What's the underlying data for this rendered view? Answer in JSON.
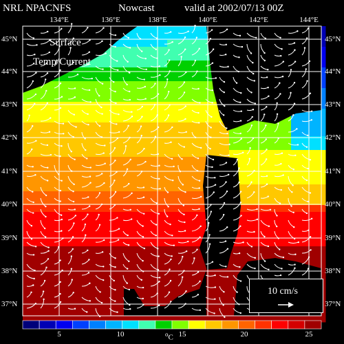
{
  "header": {
    "source": "NRL NPACNFS",
    "product": "Nowcast",
    "valid": "valid at 2002/07/13 00Z"
  },
  "overlay": {
    "line1": "Surface",
    "line2": "Temp/Current"
  },
  "map": {
    "lon_labels": [
      "134°E",
      "136°E",
      "138°E",
      "140°E",
      "142°E",
      "144°E"
    ],
    "lat_labels": [
      "45°N",
      "44°N",
      "43°N",
      "42°N",
      "41°N",
      "40°N",
      "39°N",
      "38°N",
      "37°N"
    ],
    "land_color": "#000000",
    "grid_color": "#ffffff"
  },
  "vector_legend": {
    "label": "10 cm/s"
  },
  "colorbar": {
    "labels": [
      "5",
      "10",
      "15",
      "20",
      "25"
    ],
    "unit": "°C",
    "colors": [
      "#00007a",
      "#0000b4",
      "#0000f0",
      "#0040ff",
      "#0080ff",
      "#00b4ff",
      "#00e0ff",
      "#40ffb0",
      "#00d000",
      "#80ff00",
      "#ffff00",
      "#ffc800",
      "#ff9600",
      "#ff6400",
      "#ff3200",
      "#ff0000",
      "#d40000",
      "#a00000"
    ]
  }
}
